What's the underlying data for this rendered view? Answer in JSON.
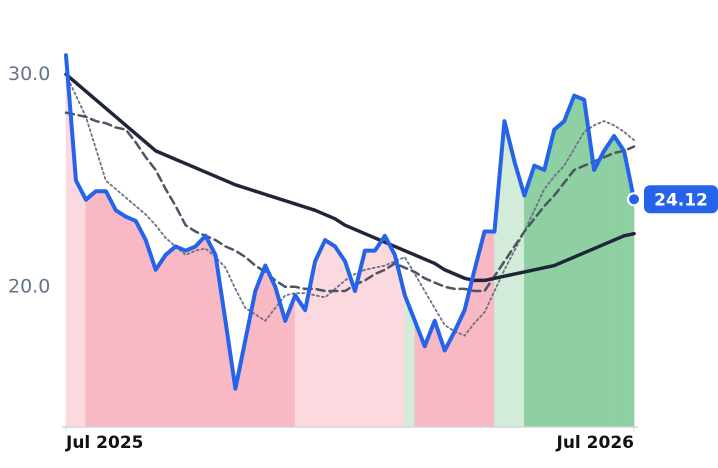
{
  "chart_data": {
    "type": "line",
    "categories": [
      "Jul 2025",
      null,
      null,
      null,
      null,
      null,
      null,
      null,
      null,
      null,
      null,
      null,
      null,
      null,
      null,
      null,
      null,
      null,
      null,
      null,
      null,
      null,
      null,
      null,
      null,
      null,
      null,
      null,
      null,
      null,
      null,
      null,
      null,
      null,
      null,
      null,
      null,
      null,
      null,
      null,
      null,
      null,
      null,
      null,
      null,
      null,
      null,
      null,
      null,
      null,
      null,
      null,
      null,
      null,
      null,
      null,
      null,
      "Jul 2026"
    ],
    "ylim": [
      13.4,
      33.5
    ],
    "yticks": [
      {
        "value": 20,
        "label": "20.0"
      },
      {
        "value": 30,
        "label": "30.0"
      }
    ],
    "area_colors": [
      "#fcd9df",
      "#fcd9df",
      "#f8b9c4",
      "#f8b9c4",
      "#f8b9c4",
      "#f8b9c4",
      "#f8b9c4",
      "#f8b9c4",
      "#f8b9c4",
      "#f8b9c4",
      "#f8b9c4",
      "#f8b9c4",
      "#f8b9c4",
      "#f8b9c4",
      "#f8b9c4",
      "#f8b9c4",
      "#f8b9c4",
      "#f8b9c4",
      "#f8b9c4",
      "#f8b9c4",
      "#f8b9c4",
      "#f8b9c4",
      "#f8b9c4",
      "#fcd9df",
      "#fcd9df",
      "#fcd9df",
      "#fcd9df",
      "#fcd9df",
      "#fcd9df",
      "#fcd9df",
      "#fcd9df",
      "#fcd9df",
      "#fcd9df",
      "#fcd9df",
      "#d3ecd9",
      "#f8b9c4",
      "#f8b9c4",
      "#f8b9c4",
      "#f8b9c4",
      "#f8b9c4",
      "#f8b9c4",
      "#f8b9c4",
      "#f8b9c4",
      "#d3ecd9",
      "#d3ecd9",
      "#d3ecd9",
      "#8fd0a2",
      "#8fd0a2",
      "#8fd0a2",
      "#8fd0a2",
      "#8fd0a2",
      "#8fd0a2",
      "#8fd0a2",
      "#8fd0a2",
      "#8fd0a2",
      "#8fd0a2",
      "#8fd0a2",
      "#8fd0a2"
    ],
    "series": [
      {
        "color": "#2563eb",
        "width": 4,
        "values": [
          30.9,
          25.0,
          24.1,
          24.5,
          24.5,
          23.6,
          23.3,
          23.1,
          22.2,
          20.8,
          21.5,
          21.9,
          21.7,
          21.9,
          22.4,
          21.5,
          18.4,
          15.2,
          17.5,
          19.8,
          21.0,
          20.0,
          18.4,
          19.6,
          18.9,
          21.2,
          22.2,
          21.9,
          21.2,
          19.8,
          21.7,
          21.7,
          22.4,
          21.5,
          19.6,
          18.4,
          17.2,
          18.4,
          17.0,
          17.9,
          18.9,
          20.8,
          22.6,
          22.6,
          27.8,
          25.9,
          24.3,
          25.7,
          25.5,
          27.4,
          27.8,
          29.0,
          28.8,
          25.5,
          26.4,
          27.1,
          26.4,
          24.12
        ]
      },
      {
        "color": "#1e2637",
        "width": 3.5,
        "values": [
          30.0,
          29.6,
          29.2,
          28.8,
          28.4,
          28.0,
          27.6,
          27.2,
          26.8,
          26.4,
          26.2,
          26.0,
          25.8,
          25.6,
          25.4,
          25.2,
          25.0,
          24.8,
          24.65,
          24.5,
          24.35,
          24.2,
          24.05,
          23.9,
          23.75,
          23.6,
          23.4,
          23.2,
          22.9,
          22.7,
          22.5,
          22.3,
          22.1,
          21.9,
          21.7,
          21.5,
          21.3,
          21.1,
          20.8,
          20.6,
          20.4,
          20.3,
          20.3,
          20.4,
          20.5,
          20.6,
          20.7,
          20.8,
          20.9,
          21.0,
          21.2,
          21.4,
          21.6,
          21.8,
          22.0,
          22.2,
          22.4,
          22.5
        ]
      },
      {
        "color": "#4b5563",
        "width": 2.5,
        "dash": "8 5",
        "values": [
          28.2,
          28.1,
          28.0,
          27.8,
          27.7,
          27.5,
          27.4,
          26.8,
          26.1,
          25.5,
          24.6,
          23.8,
          22.9,
          22.6,
          22.4,
          22.2,
          21.9,
          21.7,
          21.4,
          21.0,
          20.7,
          20.3,
          20.0,
          20.0,
          19.9,
          19.9,
          19.8,
          19.8,
          19.8,
          20.1,
          20.3,
          20.6,
          20.8,
          21.1,
          20.9,
          20.7,
          20.4,
          20.2,
          20.0,
          19.9,
          19.9,
          19.8,
          19.8,
          20.5,
          21.2,
          21.9,
          22.6,
          23.2,
          23.8,
          24.3,
          24.9,
          25.5,
          25.7,
          25.9,
          26.1,
          26.3,
          26.4,
          26.6
        ]
      },
      {
        "color": "#6b7280",
        "width": 1.8,
        "dash": "2 3",
        "values": [
          30.0,
          29.0,
          28.0,
          26.5,
          25.0,
          24.6,
          24.2,
          23.8,
          23.4,
          22.9,
          22.3,
          21.9,
          21.5,
          21.7,
          21.8,
          21.4,
          20.9,
          19.9,
          19.0,
          18.7,
          18.4,
          19.0,
          19.6,
          19.7,
          19.7,
          19.6,
          19.5,
          19.9,
          20.3,
          20.6,
          20.8,
          20.9,
          21.0,
          21.2,
          21.4,
          20.6,
          19.8,
          19.0,
          18.2,
          17.9,
          17.7,
          18.3,
          18.8,
          19.8,
          20.8,
          21.7,
          22.6,
          23.6,
          24.6,
          25.2,
          25.7,
          26.5,
          27.3,
          27.6,
          27.8,
          27.6,
          27.3,
          26.9
        ]
      }
    ]
  }
}
